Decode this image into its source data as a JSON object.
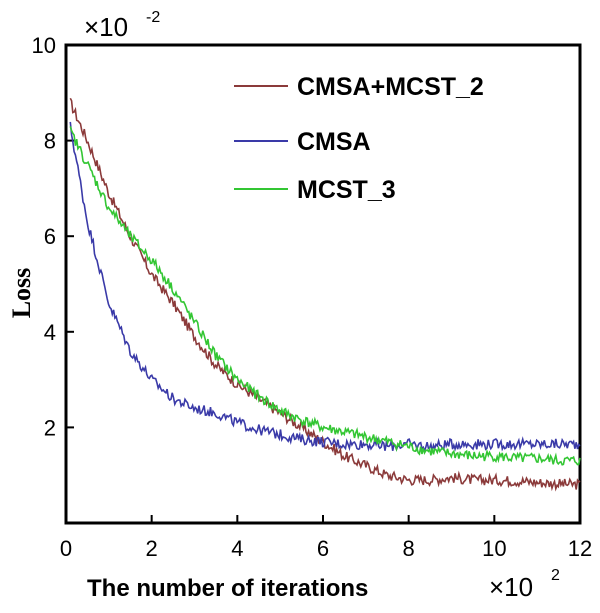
{
  "chart_data": {
    "type": "line",
    "xlabel": "The number of iterations",
    "ylabel": "Loss",
    "x_multiplier": {
      "base": "×10",
      "exp": "2"
    },
    "y_multiplier": {
      "base": "×10",
      "exp": "-2"
    },
    "xlim": [
      0,
      12
    ],
    "ylim": [
      0,
      10
    ],
    "x_ticks": [
      "0",
      "2",
      "4",
      "6",
      "8",
      "10",
      "12"
    ],
    "y_ticks": [
      "2",
      "4",
      "6",
      "8",
      "10"
    ],
    "legend_position": "top-right",
    "grid": false,
    "series": [
      {
        "name": "CMSA+MCST_2",
        "color": "#8b3a3a",
        "x": [
          0.1,
          0.5,
          1,
          1.5,
          2,
          2.5,
          3,
          3.5,
          4,
          4.5,
          5,
          5.5,
          6,
          6.5,
          7,
          7.5,
          8,
          8.5,
          9,
          9.5,
          10,
          10.5,
          11,
          11.5,
          12
        ],
        "y": [
          8.8,
          8.0,
          6.9,
          6.0,
          5.2,
          4.6,
          3.9,
          3.3,
          2.9,
          2.6,
          2.3,
          2.0,
          1.7,
          1.4,
          1.2,
          1.0,
          0.9,
          0.9,
          0.95,
          0.9,
          0.9,
          0.88,
          0.85,
          0.82,
          0.8
        ]
      },
      {
        "name": "CMSA",
        "color": "#3a3aa8",
        "x": [
          0.1,
          0.5,
          1,
          1.5,
          2,
          2.5,
          3,
          3.5,
          4,
          4.5,
          5,
          5.5,
          6,
          6.5,
          7,
          7.5,
          8,
          8.5,
          9,
          9.5,
          10,
          10.5,
          11,
          11.5,
          12
        ],
        "y": [
          8.3,
          6.3,
          4.6,
          3.6,
          3.0,
          2.6,
          2.4,
          2.3,
          2.1,
          1.95,
          1.85,
          1.75,
          1.7,
          1.65,
          1.65,
          1.6,
          1.65,
          1.6,
          1.65,
          1.65,
          1.65,
          1.65,
          1.65,
          1.65,
          1.65
        ]
      },
      {
        "name": "MCST_3",
        "color": "#33c633",
        "x": [
          0.1,
          0.5,
          1,
          1.5,
          2,
          2.5,
          3,
          3.5,
          4,
          4.5,
          5,
          5.5,
          6,
          6.5,
          7,
          7.5,
          8,
          8.5,
          9,
          9.5,
          10,
          10.5,
          11,
          11.5,
          12
        ],
        "y": [
          8.2,
          7.5,
          6.6,
          6.0,
          5.5,
          4.9,
          4.2,
          3.5,
          3.0,
          2.65,
          2.35,
          2.15,
          2.0,
          1.9,
          1.8,
          1.7,
          1.6,
          1.5,
          1.45,
          1.4,
          1.4,
          1.35,
          1.35,
          1.3,
          1.3
        ]
      }
    ]
  }
}
